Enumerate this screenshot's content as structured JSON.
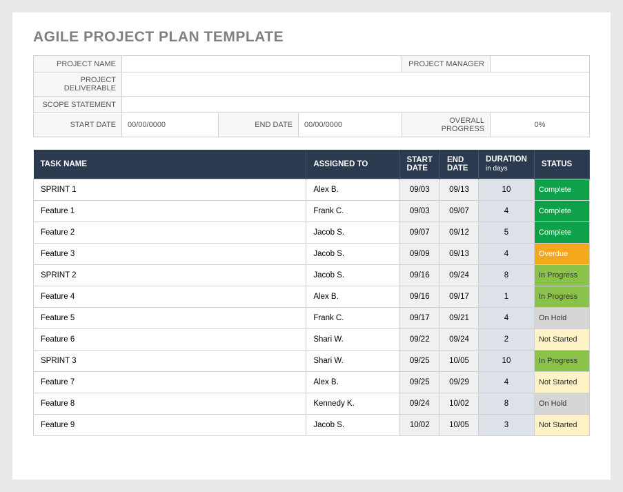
{
  "title": "AGILE PROJECT PLAN TEMPLATE",
  "meta": {
    "labels": {
      "project_name": "PROJECT NAME",
      "project_manager": "PROJECT MANAGER",
      "project_deliverable": "PROJECT DELIVERABLE",
      "scope_statement": "SCOPE STATEMENT",
      "start_date": "START DATE",
      "end_date": "END DATE",
      "overall_progress": "OVERALL PROGRESS"
    },
    "values": {
      "project_name": "",
      "project_manager": "",
      "project_deliverable": "",
      "scope_statement": "",
      "start_date": "00/00/0000",
      "end_date": "00/00/0000",
      "overall_progress": "0%"
    }
  },
  "columns": {
    "task_name": "TASK NAME",
    "assigned_to": "ASSIGNED TO",
    "start_date": "START DATE",
    "end_date": "END DATE",
    "duration": "DURATION",
    "duration_sub": "in days",
    "status": "STATUS"
  },
  "status_colors": {
    "Complete": {
      "bg": "#0fa14a",
      "fg": "#ffffff"
    },
    "Overdue": {
      "bg": "#f6a81c",
      "fg": "#ffffff"
    },
    "In Progress": {
      "bg": "#8bc34a",
      "fg": "#333333"
    },
    "On Hold": {
      "bg": "#d6d6d6",
      "fg": "#333333"
    },
    "Not Started": {
      "bg": "#fdf3c6",
      "fg": "#333333"
    }
  },
  "rows": [
    {
      "task": "SPRINT 1",
      "assigned": "Alex B.",
      "start": "09/03",
      "end": "09/13",
      "duration": "10",
      "status": "Complete"
    },
    {
      "task": "Feature 1",
      "assigned": "Frank C.",
      "start": "09/03",
      "end": "09/07",
      "duration": "4",
      "status": "Complete"
    },
    {
      "task": "Feature 2",
      "assigned": "Jacob S.",
      "start": "09/07",
      "end": "09/12",
      "duration": "5",
      "status": "Complete"
    },
    {
      "task": "Feature 3",
      "assigned": "Jacob S.",
      "start": "09/09",
      "end": "09/13",
      "duration": "4",
      "status": "Overdue"
    },
    {
      "task": "SPRINT 2",
      "assigned": "Jacob S.",
      "start": "09/16",
      "end": "09/24",
      "duration": "8",
      "status": "In Progress"
    },
    {
      "task": "Feature 4",
      "assigned": "Alex B.",
      "start": "09/16",
      "end": "09/17",
      "duration": "1",
      "status": "In Progress"
    },
    {
      "task": "Feature 5",
      "assigned": "Frank C.",
      "start": "09/17",
      "end": "09/21",
      "duration": "4",
      "status": "On Hold"
    },
    {
      "task": "Feature 6",
      "assigned": "Shari W.",
      "start": "09/22",
      "end": "09/24",
      "duration": "2",
      "status": "Not Started"
    },
    {
      "task": "SPRINT 3",
      "assigned": "Shari W.",
      "start": "09/25",
      "end": "10/05",
      "duration": "10",
      "status": "In Progress"
    },
    {
      "task": "Feature 7",
      "assigned": "Alex B.",
      "start": "09/25",
      "end": "09/29",
      "duration": "4",
      "status": "Not Started"
    },
    {
      "task": "Feature 8",
      "assigned": "Kennedy K.",
      "start": "09/24",
      "end": "10/02",
      "duration": "8",
      "status": "On Hold"
    },
    {
      "task": "Feature 9",
      "assigned": "Jacob S.",
      "start": "10/02",
      "end": "10/05",
      "duration": "3",
      "status": "Not Started"
    }
  ]
}
